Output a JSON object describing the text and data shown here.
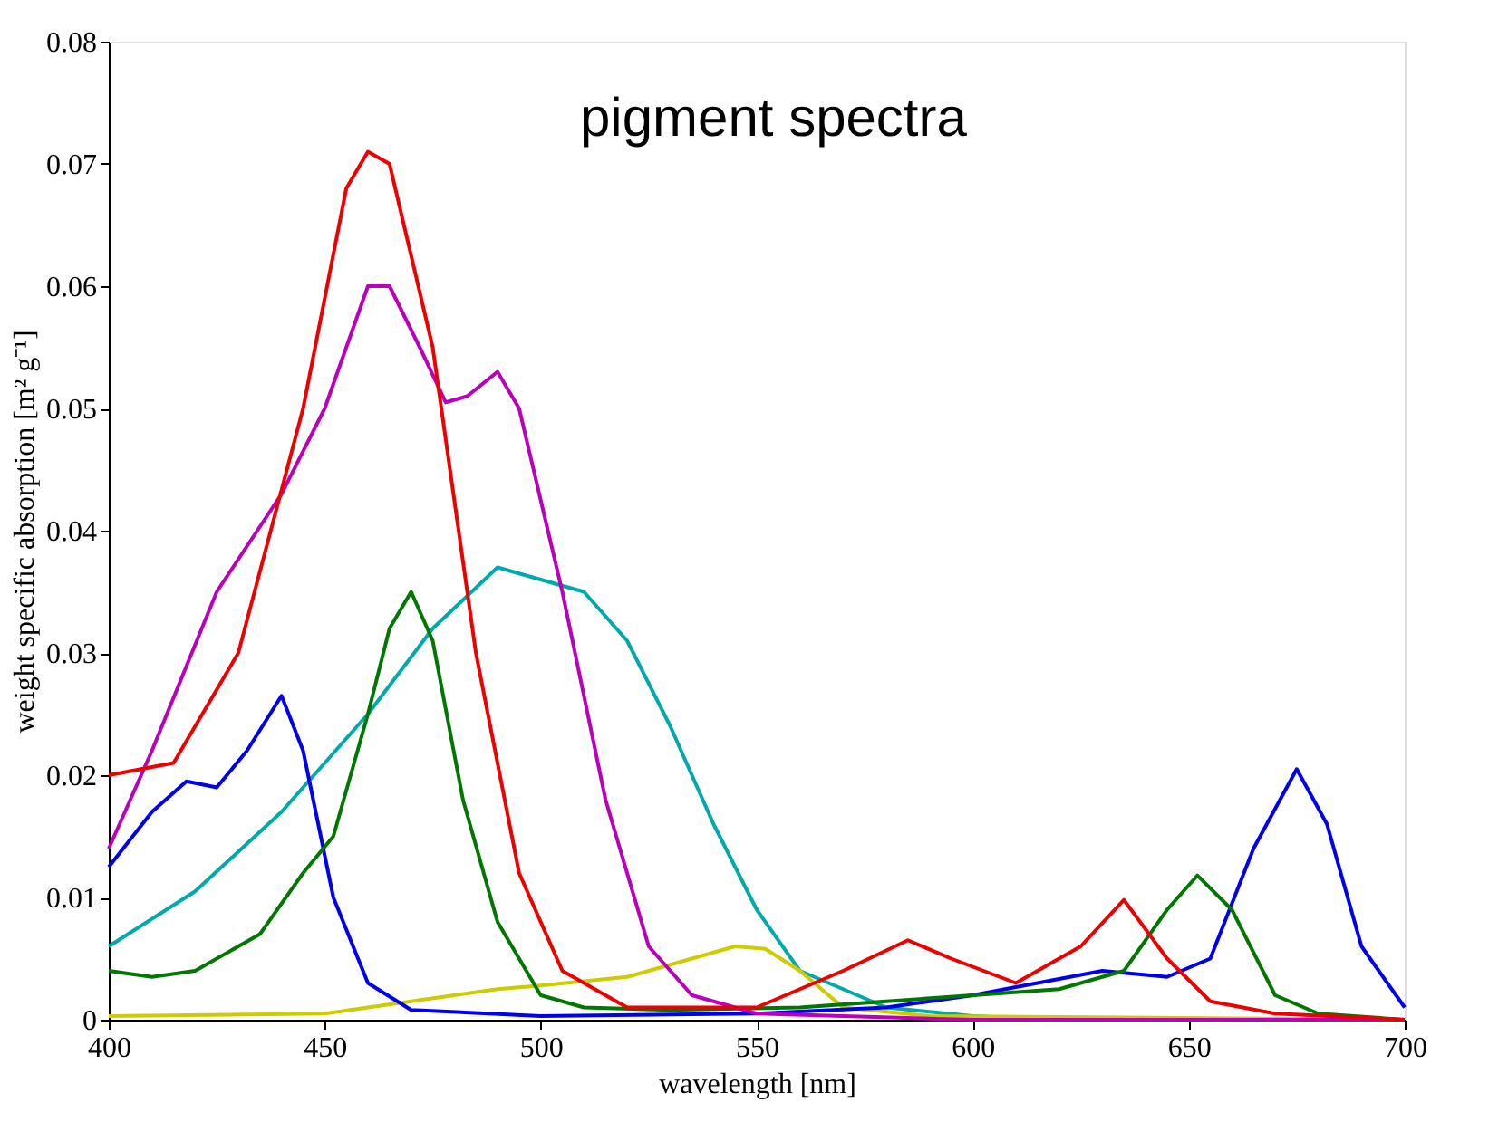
{
  "chart_data": {
    "type": "line",
    "xlabel": "wavelength [nm]",
    "ylabel": "weight specific absorption [m² g⁻¹]",
    "annotations": [
      "pigment spectra"
    ],
    "xlim": [
      400,
      700
    ],
    "xticks": [
      400,
      450,
      500,
      550,
      600,
      650,
      700
    ],
    "ylim": [
      0,
      0.08
    ],
    "yticks": [
      0,
      0.01,
      0.02,
      0.03,
      0.04,
      0.05,
      0.06,
      0.07,
      0.08
    ],
    "grid": false,
    "legend": false,
    "marker": "none",
    "line_style": "solid",
    "series": [
      {
        "color": "#00aaaa",
        "x": [
          400,
          420,
          440,
          460,
          475,
          490,
          500,
          510,
          520,
          530,
          540,
          550,
          560,
          580,
          600,
          620,
          700
        ],
        "values": [
          0.006,
          0.0105,
          0.017,
          0.025,
          0.032,
          0.037,
          0.036,
          0.035,
          0.031,
          0.024,
          0.016,
          0.009,
          0.004,
          0.001,
          0.0003,
          0,
          0
        ]
      },
      {
        "color": "#cccc00",
        "x": [
          400,
          450,
          480,
          490,
          500,
          520,
          535,
          545,
          552,
          560,
          570,
          590,
          700
        ],
        "values": [
          0.0003,
          0.0005,
          0.002,
          0.0025,
          0.0028,
          0.0035,
          0.005,
          0.006,
          0.0058,
          0.004,
          0.001,
          0.0003,
          0
        ]
      },
      {
        "color": "#0000ee",
        "x": [
          400,
          410,
          418,
          425,
          432,
          440,
          445,
          452,
          460,
          470,
          500,
          550,
          580,
          600,
          615,
          630,
          645,
          655,
          665,
          675,
          682,
          690,
          700
        ],
        "values": [
          0.0125,
          0.017,
          0.0195,
          0.019,
          0.022,
          0.0265,
          0.022,
          0.01,
          0.003,
          0.0008,
          0.0003,
          0.0005,
          0.001,
          0.002,
          0.003,
          0.004,
          0.0035,
          0.005,
          0.014,
          0.0205,
          0.016,
          0.006,
          0.001
        ]
      },
      {
        "color": "#007700",
        "x": [
          400,
          410,
          420,
          435,
          445,
          452,
          460,
          465,
          470,
          475,
          482,
          490,
          500,
          510,
          530,
          560,
          580,
          600,
          620,
          635,
          645,
          652,
          660,
          670,
          680,
          700
        ],
        "values": [
          0.004,
          0.0035,
          0.004,
          0.007,
          0.012,
          0.015,
          0.025,
          0.032,
          0.035,
          0.031,
          0.018,
          0.008,
          0.002,
          0.001,
          0.0008,
          0.001,
          0.0015,
          0.002,
          0.0025,
          0.004,
          0.009,
          0.0118,
          0.009,
          0.002,
          0.0005,
          0
        ]
      },
      {
        "color": "#bb00bb",
        "x": [
          400,
          410,
          425,
          440,
          450,
          460,
          465,
          472,
          478,
          483,
          490,
          495,
          505,
          515,
          525,
          535,
          550,
          600,
          700
        ],
        "values": [
          0.014,
          0.022,
          0.035,
          0.043,
          0.05,
          0.06,
          0.06,
          0.055,
          0.0505,
          0.051,
          0.053,
          0.05,
          0.035,
          0.018,
          0.006,
          0.002,
          0.0005,
          0,
          0
        ]
      },
      {
        "color": "#ee0000",
        "x": [
          400,
          415,
          430,
          445,
          455,
          460,
          465,
          475,
          485,
          495,
          505,
          520,
          550,
          570,
          585,
          595,
          610,
          625,
          635,
          645,
          655,
          670,
          700
        ],
        "values": [
          0.02,
          0.021,
          0.03,
          0.05,
          0.068,
          0.071,
          0.07,
          0.055,
          0.03,
          0.012,
          0.004,
          0.001,
          0.001,
          0.004,
          0.0065,
          0.005,
          0.003,
          0.006,
          0.0098,
          0.005,
          0.0015,
          0.0005,
          0
        ]
      }
    ]
  }
}
